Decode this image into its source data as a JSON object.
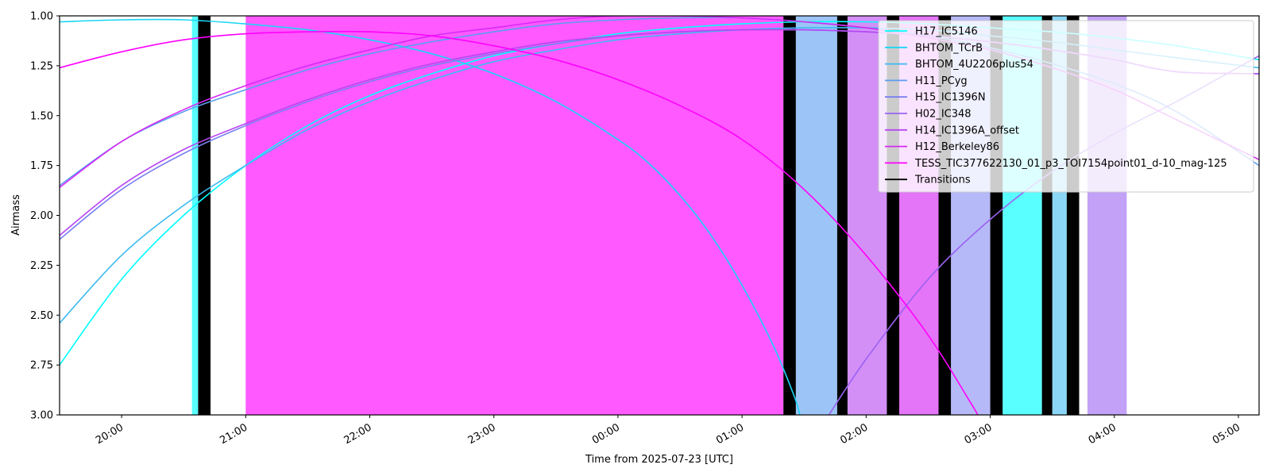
{
  "chart_data": {
    "type": "line",
    "xlabel": "Time from 2025-07-23 [UTC]",
    "ylabel": "Airmass",
    "xlim": [
      "2025-07-22T19:30",
      "2025-07-23T05:10"
    ],
    "ylim": [
      1.0,
      3.0
    ],
    "y_inverted": true,
    "grid": false,
    "legend_position": "upper right",
    "x_ticks": [
      {
        "t": "2025-07-22T20:00",
        "label": "20:00"
      },
      {
        "t": "2025-07-22T21:00",
        "label": "21:00"
      },
      {
        "t": "2025-07-22T22:00",
        "label": "22:00"
      },
      {
        "t": "2025-07-22T23:00",
        "label": "23:00"
      },
      {
        "t": "2025-07-23T00:00",
        "label": "00:00"
      },
      {
        "t": "2025-07-23T01:00",
        "label": "01:00"
      },
      {
        "t": "2025-07-23T02:00",
        "label": "02:00"
      },
      {
        "t": "2025-07-23T03:00",
        "label": "03:00"
      },
      {
        "t": "2025-07-23T04:00",
        "label": "04:00"
      },
      {
        "t": "2025-07-23T05:00",
        "label": "05:00"
      }
    ],
    "y_ticks": [
      1.0,
      1.25,
      1.5,
      1.75,
      2.0,
      2.25,
      2.5,
      2.75,
      3.0
    ],
    "y_tick_labels": [
      "1.00",
      "1.25",
      "1.50",
      "1.75",
      "2.00",
      "2.25",
      "2.50",
      "2.75",
      "3.00"
    ],
    "series": [
      {
        "name": "H17_IC5146",
        "color": "#00ffff",
        "points": [
          [
            "2025-07-22T19:30",
            2.75
          ],
          [
            "2025-07-22T20:00",
            2.32
          ],
          [
            "2025-07-22T20:30",
            2.0
          ],
          [
            "2025-07-22T21:00",
            1.75
          ],
          [
            "2025-07-22T21:30",
            1.55
          ],
          [
            "2025-07-22T22:00",
            1.4
          ],
          [
            "2025-07-22T22:30",
            1.29
          ],
          [
            "2025-07-22T23:00",
            1.2
          ],
          [
            "2025-07-22T23:30",
            1.14
          ],
          [
            "2025-07-23T00:00",
            1.09
          ],
          [
            "2025-07-23T00:30",
            1.06
          ],
          [
            "2025-07-23T01:00",
            1.04
          ],
          [
            "2025-07-23T01:30",
            1.03
          ],
          [
            "2025-07-23T02:00",
            1.03
          ],
          [
            "2025-07-23T02:30",
            1.04
          ],
          [
            "2025-07-23T03:00",
            1.06
          ],
          [
            "2025-07-23T03:30",
            1.08
          ],
          [
            "2025-07-23T04:00",
            1.11
          ],
          [
            "2025-07-23T04:30",
            1.15
          ],
          [
            "2025-07-23T05:10",
            1.22
          ]
        ]
      },
      {
        "name": "BHTOM_TCrB",
        "color": "#1ad5f5",
        "points": [
          [
            "2025-07-22T19:30",
            1.03
          ],
          [
            "2025-07-22T20:00",
            1.02
          ],
          [
            "2025-07-22T20:30",
            1.02
          ],
          [
            "2025-07-22T21:00",
            1.04
          ],
          [
            "2025-07-22T21:30",
            1.07
          ],
          [
            "2025-07-22T22:00",
            1.12
          ],
          [
            "2025-07-22T22:30",
            1.19
          ],
          [
            "2025-07-22T23:00",
            1.29
          ],
          [
            "2025-07-22T23:30",
            1.43
          ],
          [
            "2025-07-23T00:00",
            1.62
          ],
          [
            "2025-07-23T00:15",
            1.74
          ],
          [
            "2025-07-23T00:30",
            1.9
          ],
          [
            "2025-07-23T00:45",
            2.1
          ],
          [
            "2025-07-23T01:00",
            2.35
          ],
          [
            "2025-07-23T01:15",
            2.65
          ],
          [
            "2025-07-23T01:25",
            2.9
          ],
          [
            "2025-07-23T01:28",
            3.0
          ]
        ]
      },
      {
        "name": "BHTOM_4U2206plus54",
        "color": "#3dbaf0",
        "points": [
          [
            "2025-07-22T19:30",
            2.54
          ],
          [
            "2025-07-22T20:00",
            2.2
          ],
          [
            "2025-07-22T20:30",
            1.95
          ],
          [
            "2025-07-22T21:00",
            1.75
          ],
          [
            "2025-07-22T21:30",
            1.57
          ],
          [
            "2025-07-22T22:00",
            1.43
          ],
          [
            "2025-07-22T22:30",
            1.32
          ],
          [
            "2025-07-22T23:00",
            1.23
          ],
          [
            "2025-07-22T23:30",
            1.17
          ],
          [
            "2025-07-23T00:00",
            1.12
          ],
          [
            "2025-07-23T00:30",
            1.09
          ],
          [
            "2025-07-23T01:00",
            1.07
          ],
          [
            "2025-07-23T01:30",
            1.06
          ],
          [
            "2025-07-23T02:00",
            1.06
          ],
          [
            "2025-07-23T02:30",
            1.07
          ],
          [
            "2025-07-23T03:00",
            1.1
          ],
          [
            "2025-07-23T03:30",
            1.13
          ],
          [
            "2025-07-23T04:00",
            1.17
          ],
          [
            "2025-07-23T04:30",
            1.21
          ],
          [
            "2025-07-23T05:10",
            1.26
          ]
        ]
      },
      {
        "name": "H11_PCyg",
        "color": "#5b9df0",
        "points": [
          [
            "2025-07-22T19:30",
            1.85
          ],
          [
            "2025-07-22T20:00",
            1.63
          ],
          [
            "2025-07-22T20:30",
            1.48
          ],
          [
            "2025-07-22T21:00",
            1.37
          ],
          [
            "2025-07-22T21:30",
            1.27
          ],
          [
            "2025-07-22T22:00",
            1.19
          ],
          [
            "2025-07-22T22:30",
            1.13
          ],
          [
            "2025-07-22T23:00",
            1.08
          ],
          [
            "2025-07-22T23:30",
            1.04
          ],
          [
            "2025-07-23T00:00",
            1.02
          ],
          [
            "2025-07-23T00:30",
            1.01
          ],
          [
            "2025-07-23T01:00",
            1.01
          ],
          [
            "2025-07-23T01:30",
            1.03
          ],
          [
            "2025-07-23T02:00",
            1.06
          ],
          [
            "2025-07-23T02:30",
            1.1
          ],
          [
            "2025-07-23T03:00",
            1.16
          ],
          [
            "2025-07-23T03:30",
            1.24
          ],
          [
            "2025-07-23T04:00",
            1.34
          ],
          [
            "2025-07-23T04:30",
            1.48
          ],
          [
            "2025-07-23T05:10",
            1.75
          ]
        ]
      },
      {
        "name": "H15_IC1396N",
        "color": "#7a7ff0",
        "points": [
          [
            "2025-07-22T19:30",
            2.12
          ],
          [
            "2025-07-22T20:00",
            1.87
          ],
          [
            "2025-07-22T20:30",
            1.69
          ],
          [
            "2025-07-22T21:00",
            1.55
          ],
          [
            "2025-07-22T21:30",
            1.43
          ],
          [
            "2025-07-22T22:00",
            1.33
          ],
          [
            "2025-07-22T22:30",
            1.25
          ],
          [
            "2025-07-22T23:00",
            1.19
          ],
          [
            "2025-07-22T23:30",
            1.14
          ],
          [
            "2025-07-23T00:00",
            1.1
          ],
          [
            "2025-07-23T00:30",
            1.08
          ],
          [
            "2025-07-23T01:00",
            1.07
          ],
          [
            "2025-07-23T01:30",
            1.07
          ],
          [
            "2025-07-23T02:00",
            1.08
          ],
          [
            "2025-07-23T02:30",
            1.1
          ],
          [
            "2025-07-23T03:00",
            1.13
          ],
          [
            "2025-07-23T03:30",
            1.17
          ],
          [
            "2025-07-23T04:00",
            1.22
          ],
          [
            "2025-07-23T04:30",
            1.28
          ],
          [
            "2025-07-23T05:10",
            1.29
          ]
        ]
      },
      {
        "name": "H02_IC348",
        "color": "#9a62f0",
        "points": [
          [
            "2025-07-23T01:42",
            3.0
          ],
          [
            "2025-07-23T02:00",
            2.72
          ],
          [
            "2025-07-23T02:30",
            2.32
          ],
          [
            "2025-07-23T03:00",
            2.02
          ],
          [
            "2025-07-23T03:30",
            1.78
          ],
          [
            "2025-07-23T04:00",
            1.59
          ],
          [
            "2025-07-23T04:30",
            1.43
          ],
          [
            "2025-07-23T05:10",
            1.2
          ]
        ]
      },
      {
        "name": "H14_IC1396A_offset",
        "color": "#b845f2",
        "points": [
          [
            "2025-07-22T19:30",
            2.1
          ],
          [
            "2025-07-22T20:00",
            1.85
          ],
          [
            "2025-07-22T20:30",
            1.67
          ],
          [
            "2025-07-22T21:00",
            1.54
          ],
          [
            "2025-07-22T21:30",
            1.42
          ],
          [
            "2025-07-22T22:00",
            1.32
          ],
          [
            "2025-07-22T22:30",
            1.24
          ],
          [
            "2025-07-22T23:00",
            1.18
          ],
          [
            "2025-07-22T23:30",
            1.13
          ],
          [
            "2025-07-23T00:00",
            1.1
          ],
          [
            "2025-07-23T00:30",
            1.08
          ],
          [
            "2025-07-23T01:00",
            1.07
          ],
          [
            "2025-07-23T01:30",
            1.07
          ],
          [
            "2025-07-23T02:00",
            1.08
          ],
          [
            "2025-07-23T02:30",
            1.1
          ],
          [
            "2025-07-23T03:00",
            1.13
          ],
          [
            "2025-07-23T03:30",
            1.17
          ],
          [
            "2025-07-23T04:00",
            1.22
          ],
          [
            "2025-07-23T04:30",
            1.28
          ],
          [
            "2025-07-23T05:10",
            1.29
          ]
        ]
      },
      {
        "name": "H12_Berkeley86",
        "color": "#d629f5",
        "points": [
          [
            "2025-07-22T19:30",
            1.86
          ],
          [
            "2025-07-22T20:00",
            1.63
          ],
          [
            "2025-07-22T20:30",
            1.47
          ],
          [
            "2025-07-22T21:00",
            1.35
          ],
          [
            "2025-07-22T21:30",
            1.25
          ],
          [
            "2025-07-22T22:00",
            1.17
          ],
          [
            "2025-07-22T22:30",
            1.1
          ],
          [
            "2025-07-22T23:00",
            1.06
          ],
          [
            "2025-07-22T23:30",
            1.02
          ],
          [
            "2025-07-23T00:00",
            1.0
          ],
          [
            "2025-07-23T00:30",
            1.0
          ],
          [
            "2025-07-23T01:00",
            1.01
          ],
          [
            "2025-07-23T01:30",
            1.03
          ],
          [
            "2025-07-23T02:00",
            1.06
          ],
          [
            "2025-07-23T02:30",
            1.11
          ],
          [
            "2025-07-23T03:00",
            1.17
          ],
          [
            "2025-07-23T03:30",
            1.26
          ],
          [
            "2025-07-23T04:00",
            1.37
          ],
          [
            "2025-07-23T04:30",
            1.52
          ],
          [
            "2025-07-23T05:10",
            1.72
          ]
        ]
      },
      {
        "name": "TESS_TIC377622130_01_p3_TOI7154point01_d-10_mag-125",
        "color": "#ff00ff",
        "points": [
          [
            "2025-07-22T19:30",
            1.26
          ],
          [
            "2025-07-22T20:00",
            1.18
          ],
          [
            "2025-07-22T20:30",
            1.12
          ],
          [
            "2025-07-22T21:00",
            1.09
          ],
          [
            "2025-07-22T21:30",
            1.08
          ],
          [
            "2025-07-22T22:00",
            1.08
          ],
          [
            "2025-07-22T22:30",
            1.1
          ],
          [
            "2025-07-22T23:00",
            1.15
          ],
          [
            "2025-07-22T23:30",
            1.22
          ],
          [
            "2025-07-23T00:00",
            1.32
          ],
          [
            "2025-07-23T00:30",
            1.45
          ],
          [
            "2025-07-23T01:00",
            1.62
          ],
          [
            "2025-07-23T01:30",
            1.87
          ],
          [
            "2025-07-23T02:00",
            2.2
          ],
          [
            "2025-07-23T02:30",
            2.6
          ],
          [
            "2025-07-23T02:50",
            2.93
          ],
          [
            "2025-07-23T02:54",
            3.0
          ]
        ]
      }
    ],
    "transitions_label": "Transitions",
    "transitions": [
      {
        "start": "2025-07-22T20:37",
        "end": "2025-07-22T20:43"
      },
      {
        "start": "2025-07-23T01:20",
        "end": "2025-07-23T01:26"
      },
      {
        "start": "2025-07-23T01:46",
        "end": "2025-07-23T01:51"
      },
      {
        "start": "2025-07-23T02:10",
        "end": "2025-07-23T02:16"
      },
      {
        "start": "2025-07-23T02:35",
        "end": "2025-07-23T02:41"
      },
      {
        "start": "2025-07-23T03:00",
        "end": "2025-07-23T03:06"
      },
      {
        "start": "2025-07-23T03:25",
        "end": "2025-07-23T03:30"
      },
      {
        "start": "2025-07-23T03:37",
        "end": "2025-07-23T03:43"
      }
    ],
    "observation_blocks": [
      {
        "start": "2025-07-22T20:34",
        "end": "2025-07-22T20:37",
        "color": "#00ffff",
        "opacity": 0.65
      },
      {
        "start": "2025-07-22T21:00",
        "end": "2025-07-23T01:20",
        "color": "#ff00ff",
        "opacity": 0.65
      },
      {
        "start": "2025-07-23T01:26",
        "end": "2025-07-23T01:46",
        "color": "#5b9df0",
        "opacity": 0.6
      },
      {
        "start": "2025-07-23T01:51",
        "end": "2025-07-23T02:10",
        "color": "#b845f2",
        "opacity": 0.6
      },
      {
        "start": "2025-07-23T02:16",
        "end": "2025-07-23T02:35",
        "color": "#d629f5",
        "opacity": 0.65
      },
      {
        "start": "2025-07-23T02:41",
        "end": "2025-07-23T03:00",
        "color": "#7a7ff0",
        "opacity": 0.55
      },
      {
        "start": "2025-07-23T03:06",
        "end": "2025-07-23T03:25",
        "color": "#00ffff",
        "opacity": 0.65
      },
      {
        "start": "2025-07-23T03:30",
        "end": "2025-07-23T03:37",
        "color": "#3dbaf0",
        "opacity": 0.6
      },
      {
        "start": "2025-07-23T03:47",
        "end": "2025-07-23T04:06",
        "color": "#9a62f0",
        "opacity": 0.6
      }
    ]
  }
}
